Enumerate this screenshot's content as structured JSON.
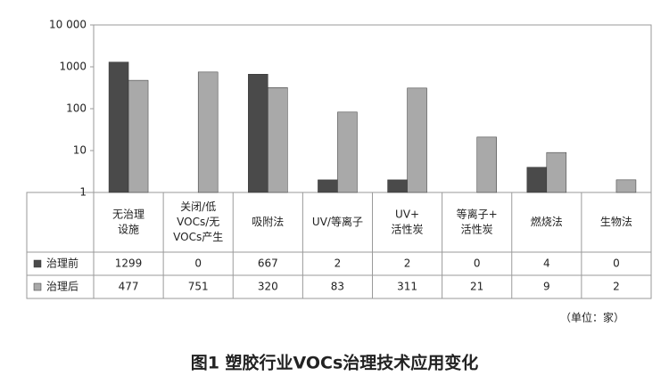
{
  "chart_data": {
    "type": "bar",
    "title": "图1  塑胶行业VOCs治理技术应用变化",
    "note": "（单位：家）",
    "categories": [
      [
        "无治理",
        "设施"
      ],
      [
        "关闭/低",
        "VOCs/无",
        "VOCs产生"
      ],
      [
        "吸附法"
      ],
      [
        "UV/等离子"
      ],
      [
        "UV+",
        "活性炭"
      ],
      [
        "等离子+",
        "活性炭"
      ],
      [
        "燃烧法"
      ],
      [
        "生物法"
      ]
    ],
    "series": [
      {
        "name": "治理前",
        "color": "#4a4a4a",
        "values": [
          1299,
          0,
          667,
          2,
          2,
          0,
          4,
          0
        ]
      },
      {
        "name": "治理后",
        "color": "#a9a9a9",
        "values": [
          477,
          751,
          320,
          83,
          311,
          21,
          9,
          2
        ]
      }
    ],
    "yscale": "log",
    "ylim": [
      1,
      10000
    ],
    "yticks": [
      1,
      10,
      100,
      1000,
      {
        "value": 10000,
        "label": "10 000"
      }
    ]
  }
}
